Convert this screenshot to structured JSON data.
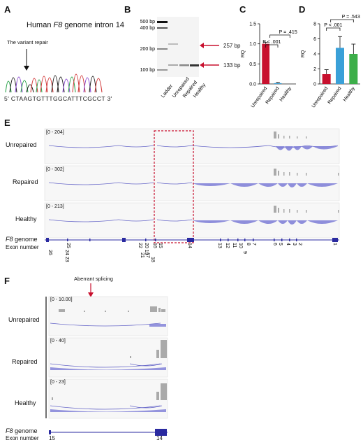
{
  "panels": {
    "A": {
      "letter": "A",
      "title_prefix": "Human ",
      "title_gene": "F8",
      "title_suffix": " genome intron 14",
      "annotation": "The variant repair",
      "sequence_start": "5'",
      "sequence": "CTAAGTGTTTGGCATTTCGCCT",
      "sequence_end": "3'"
    },
    "B": {
      "letter": "B",
      "ladder_marks": [
        "500 bp",
        "400 bp",
        "200 bp",
        "100 bp"
      ],
      "lanes": [
        "Ladder",
        "Unrepaired",
        "Repaired",
        "Healthy"
      ],
      "band_labels": [
        "257 bp",
        "133 bp"
      ]
    },
    "C": {
      "letter": "C",
      "ylabel": "RQ",
      "yticks": [
        "0.0",
        "0.5",
        "1.0",
        "1.5"
      ],
      "categories": [
        "Unrepaired",
        "Repaired",
        "Healthy"
      ],
      "p_left": "P < .001",
      "p_right": "P = .415"
    },
    "D": {
      "letter": "D",
      "ylabel": "RQ",
      "yticks": [
        "0",
        "2",
        "4",
        "6",
        "8"
      ],
      "categories": [
        "Unrepaired",
        "Repaired",
        "Healthy"
      ],
      "p_left": "P < .001",
      "p_right": "P = .543"
    },
    "E": {
      "letter": "E",
      "tracks": [
        {
          "label": "Unrepaired",
          "range": "[0 - 204]"
        },
        {
          "label": "Repaired",
          "range": "[0 - 302]"
        },
        {
          "label": "Healthy",
          "range": "[0 - 213]"
        }
      ],
      "genome_label_gene": "F8",
      "genome_label_suffix": " genome",
      "exon_label": "Exon number",
      "exons": [
        "26",
        "25",
        "24 23",
        "22",
        "21",
        "20 19",
        "17",
        "18",
        "16",
        "15",
        "14",
        "13",
        "12",
        "11",
        "10",
        "9",
        "8",
        "7",
        "6",
        "5",
        "4",
        "3",
        "2",
        "1"
      ]
    },
    "F": {
      "letter": "F",
      "annotation": "Aberrant splicing",
      "tracks": [
        {
          "label": "Unrepaired",
          "range": "[0 - 10.00]"
        },
        {
          "label": "Repaired",
          "range": "[0 - 40]"
        },
        {
          "label": "Healthy",
          "range": "[0 - 23]"
        }
      ],
      "genome_label_gene": "F8",
      "genome_label_suffix": " genome",
      "exon_label": "Exon number",
      "exon_left": "15",
      "exon_right": "14"
    }
  },
  "chart_data": [
    {
      "type": "bar",
      "panel": "C",
      "categories": [
        "Unrepaired",
        "Repaired",
        "Healthy"
      ],
      "values": [
        1.0,
        0.02,
        0.0
      ],
      "errors": [
        0.04,
        0.02,
        0.0
      ],
      "colors": [
        "#c8102e",
        "#3aa0d8",
        "#3cae49"
      ],
      "ylabel": "RQ",
      "ylim": [
        0,
        1.5
      ],
      "yticks": [
        0,
        0.5,
        1.0,
        1.5
      ],
      "annotations": [
        "P < .001",
        "P = .415"
      ]
    },
    {
      "type": "bar",
      "panel": "D",
      "categories": [
        "Unrepaired",
        "Repaired",
        "Healthy"
      ],
      "values": [
        1.3,
        4.8,
        4.0
      ],
      "errors": [
        0.6,
        1.5,
        1.3
      ],
      "colors": [
        "#c8102e",
        "#3aa0d8",
        "#3cae49"
      ],
      "ylabel": "RQ",
      "ylim": [
        0,
        8
      ],
      "yticks": [
        0,
        2,
        4,
        6,
        8
      ],
      "annotations": [
        "P < .001",
        "P = .543"
      ]
    }
  ]
}
